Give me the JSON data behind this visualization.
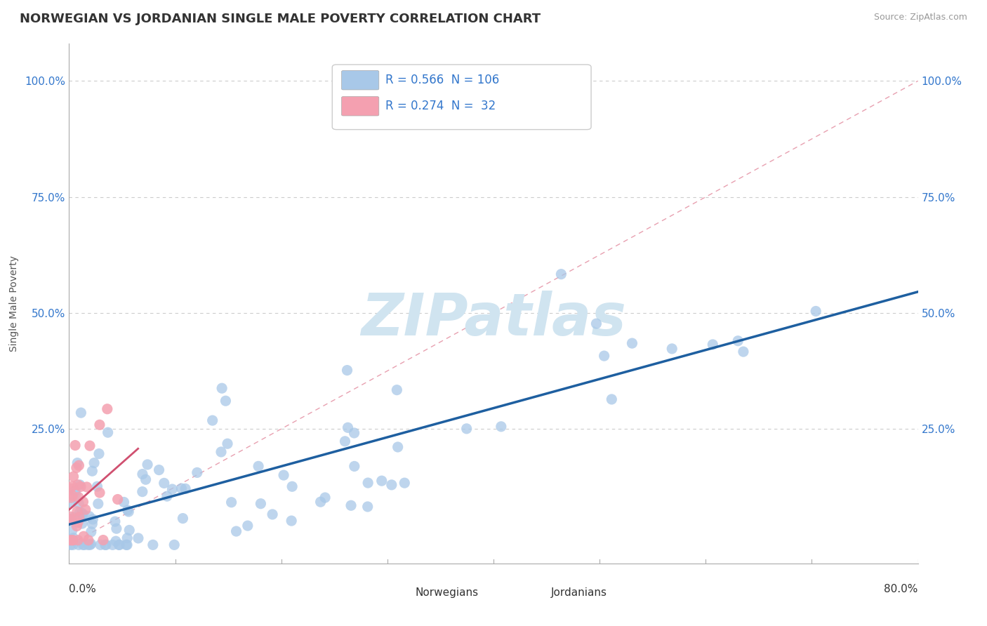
{
  "title": "NORWEGIAN VS JORDANIAN SINGLE MALE POVERTY CORRELATION CHART",
  "source": "Source: ZipAtlas.com",
  "ylabel": "Single Male Poverty",
  "ytick_labels_left": [
    "",
    "25.0%",
    "50.0%",
    "75.0%",
    "100.0%"
  ],
  "ytick_labels_right": [
    "",
    "25.0%",
    "50.0%",
    "75.0%",
    "100.0%"
  ],
  "xmin": 0.0,
  "xmax": 0.8,
  "ymin": -0.04,
  "ymax": 1.08,
  "norwegian_R": 0.566,
  "norwegian_N": 106,
  "jordanian_R": 0.274,
  "jordanian_N": 32,
  "norwegian_color": "#a8c8e8",
  "jordanian_color": "#f4a0b0",
  "norwegian_line_color": "#1e5fa0",
  "jordanian_line_color": "#d05070",
  "watermark": "ZIPatlas",
  "watermark_color": "#d0e4f0",
  "background_color": "#ffffff",
  "grid_color": "#cccccc",
  "title_color": "#333333",
  "source_color": "#999999",
  "tick_label_color": "#3377cc",
  "ylabel_color": "#555555"
}
